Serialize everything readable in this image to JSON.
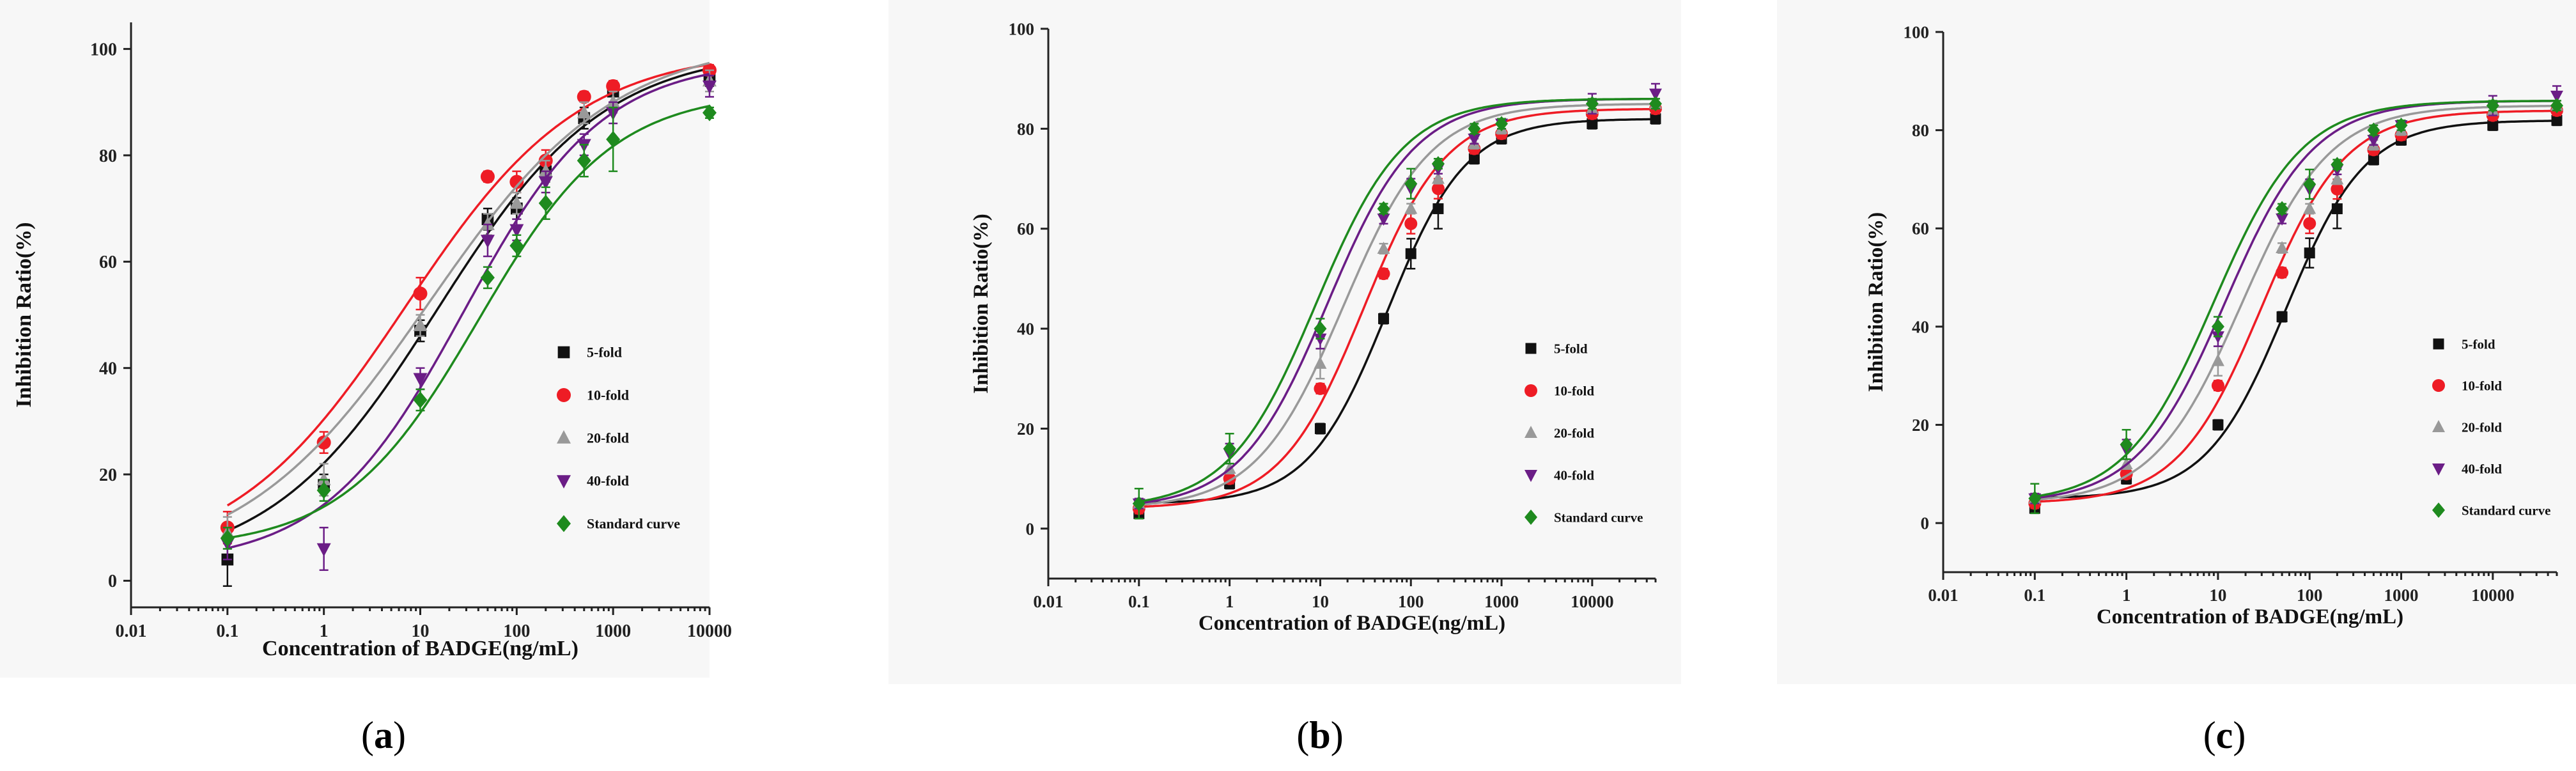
{
  "colors": {
    "5-fold": "#111111",
    "10-fold": "#ee1c25",
    "20-fold": "#999999",
    "40-fold": "#6b1d86",
    "Standard curve": "#1e8a1e"
  },
  "marker_shapes": {
    "5-fold": "square",
    "10-fold": "circle",
    "20-fold": "triangle-up",
    "40-fold": "triangle-down",
    "Standard curve": "diamond"
  },
  "chart_data": [
    {
      "id": "a",
      "caption_letter": "a",
      "type": "scatter",
      "xscale": "log",
      "xlabel": "Concentration of BADGE(ng/mL)",
      "ylabel": "Inhibition Ratio(%)",
      "xlim": [
        0.01,
        10000
      ],
      "ylim": [
        -5,
        105
      ],
      "xticks": [
        0.01,
        0.1,
        1,
        10,
        100,
        1000,
        10000
      ],
      "xtick_labels": [
        "0.01",
        "0.1",
        "1",
        "10",
        "100",
        "1000",
        "10000"
      ],
      "yticks": [
        0,
        20,
        40,
        60,
        80,
        100
      ],
      "ytick_labels": [
        "0",
        "20",
        "40",
        "60",
        "80",
        "100"
      ],
      "legend_position": "center-right",
      "series": [
        {
          "name": "5-fold",
          "x": [
            0.1,
            1,
            10,
            50,
            100,
            200,
            500,
            1000,
            10000
          ],
          "y": [
            4,
            18,
            47,
            68,
            70,
            77,
            87,
            92,
            95
          ],
          "err": [
            5,
            2,
            2,
            2,
            2,
            2,
            2,
            2,
            2
          ],
          "fit": {
            "bottom": 2,
            "top": 100,
            "ic50": 15,
            "hill": 0.5
          }
        },
        {
          "name": "10-fold",
          "x": [
            0.1,
            1,
            10,
            50,
            100,
            200,
            500,
            1000,
            10000
          ],
          "y": [
            10,
            26,
            54,
            76,
            75,
            79,
            91,
            93,
            96
          ],
          "err": [
            3,
            2,
            3,
            1,
            2,
            2,
            1,
            1,
            1
          ],
          "fit": {
            "bottom": 3,
            "top": 100,
            "ic50": 7,
            "hill": 0.48
          }
        },
        {
          "name": "20-fold",
          "x": [
            0.1,
            1,
            10,
            50,
            100,
            200,
            500,
            1000,
            10000
          ],
          "y": [
            9,
            19,
            48,
            67,
            71,
            77,
            88,
            90,
            94
          ],
          "err": [
            3,
            3,
            2,
            2,
            2,
            2,
            2,
            2,
            2
          ],
          "fit": {
            "bottom": 2,
            "top": 102,
            "ic50": 12,
            "hill": 0.45
          }
        },
        {
          "name": "40-fold",
          "x": [
            0.1,
            1,
            10,
            50,
            100,
            200,
            500,
            1000,
            10000
          ],
          "y": [
            7,
            6,
            38,
            64,
            66,
            75,
            82,
            88,
            93
          ],
          "err": [
            3,
            4,
            2,
            3,
            2,
            2,
            2,
            2,
            2
          ],
          "fit": {
            "bottom": 3,
            "top": 98,
            "ic50": 28,
            "hill": 0.6
          }
        },
        {
          "name": "Standard curve",
          "x": [
            0.1,
            1,
            10,
            50,
            100,
            200,
            500,
            1000,
            10000
          ],
          "y": [
            8,
            17,
            34,
            57,
            63,
            71,
            79,
            83,
            88
          ],
          "err": [
            2,
            2,
            2,
            2,
            2,
            3,
            3,
            6,
            1
          ],
          "fit": {
            "bottom": 6,
            "top": 92,
            "ic50": 40,
            "hill": 0.62
          }
        }
      ]
    },
    {
      "id": "b",
      "caption_letter": "b",
      "type": "scatter",
      "xscale": "log",
      "xlabel": "Concentration of BADGE(ng/mL)",
      "ylabel": "Inhibition Ratio(%)",
      "xlim": [
        0.01,
        50000
      ],
      "ylim": [
        -10,
        100
      ],
      "xticks": [
        0.01,
        0.1,
        1,
        10,
        100,
        1000,
        10000
      ],
      "xtick_labels": [
        "0.01",
        "0.1",
        "1",
        "10",
        "100",
        "1000",
        "10000"
      ],
      "yticks": [
        0,
        20,
        40,
        60,
        80,
        100
      ],
      "ytick_labels": [
        "0",
        "20",
        "40",
        "60",
        "80",
        "100"
      ],
      "legend_position": "center-right",
      "series": [
        {
          "name": "5-fold",
          "x": [
            0.1,
            1,
            10,
            50,
            100,
            200,
            500,
            1000,
            10000,
            50000
          ],
          "y": [
            3,
            9,
            20,
            42,
            55,
            64,
            74,
            78,
            81,
            82
          ],
          "err": [
            1,
            1,
            1,
            1,
            3,
            4,
            1,
            1,
            1,
            1
          ],
          "fit": {
            "bottom": 5,
            "top": 82,
            "ic50": 55,
            "hill": 1.0
          }
        },
        {
          "name": "10-fold",
          "x": [
            0.1,
            1,
            10,
            50,
            100,
            200,
            500,
            1000,
            10000,
            50000
          ],
          "y": [
            4,
            10,
            28,
            51,
            61,
            68,
            76,
            79,
            83,
            84
          ],
          "err": [
            1,
            1,
            1,
            1,
            2,
            2,
            1,
            1,
            1,
            1
          ],
          "fit": {
            "bottom": 4,
            "top": 84,
            "ic50": 30,
            "hill": 0.95
          }
        },
        {
          "name": "20-fold",
          "x": [
            0.1,
            1,
            10,
            50,
            100,
            200,
            500,
            1000,
            10000,
            50000
          ],
          "y": [
            5,
            12,
            33,
            56,
            64,
            70,
            77,
            80,
            84,
            85
          ],
          "err": [
            1,
            1,
            3,
            1,
            1,
            1,
            1,
            1,
            1,
            1
          ],
          "fit": {
            "bottom": 4,
            "top": 85,
            "ic50": 18,
            "hill": 0.9
          }
        },
        {
          "name": "40-fold",
          "x": [
            0.1,
            1,
            10,
            50,
            100,
            200,
            500,
            1000,
            10000,
            50000
          ],
          "y": [
            5,
            15,
            38,
            62,
            68,
            72,
            78,
            81,
            85,
            87
          ],
          "err": [
            1,
            2,
            2,
            1,
            2,
            1,
            1,
            1,
            2,
            2
          ],
          "fit": {
            "bottom": 4,
            "top": 86,
            "ic50": 12,
            "hill": 0.9
          }
        },
        {
          "name": "Standard curve",
          "x": [
            0.1,
            1,
            10,
            50,
            100,
            200,
            500,
            1000,
            10000,
            50000
          ],
          "y": [
            5,
            16,
            40,
            64,
            69,
            73,
            80,
            81,
            85,
            85
          ],
          "err": [
            3,
            3,
            2,
            1,
            3,
            1,
            1,
            1,
            1,
            1
          ],
          "fit": {
            "bottom": 4,
            "top": 86,
            "ic50": 9,
            "hill": 0.9
          }
        }
      ]
    },
    {
      "id": "c",
      "caption_letter": "c",
      "type": "scatter",
      "xscale": "log",
      "xlabel": "Concentration of BADGE(ng/mL)",
      "ylabel": "Inhibition Ratio(%)",
      "xlim": [
        0.01,
        50000
      ],
      "ylim": [
        -10,
        100
      ],
      "xticks": [
        0.01,
        0.1,
        1,
        10,
        100,
        1000,
        10000
      ],
      "xtick_labels": [
        "0.01",
        "0.1",
        "1",
        "10",
        "100",
        "1000",
        "10000"
      ],
      "yticks": [
        0,
        20,
        40,
        60,
        80,
        100
      ],
      "ytick_labels": [
        "0",
        "20",
        "40",
        "60",
        "80",
        "100"
      ],
      "legend_position": "center-right",
      "series": [
        {
          "name": "5-fold",
          "x": [
            0.1,
            1,
            10,
            50,
            100,
            200,
            500,
            1000,
            10000,
            50000
          ],
          "y": [
            3,
            9,
            20,
            42,
            55,
            64,
            74,
            78,
            81,
            82
          ],
          "err": [
            1,
            1,
            1,
            1,
            3,
            4,
            1,
            1,
            1,
            1
          ],
          "fit": {
            "bottom": 5,
            "top": 82,
            "ic50": 55,
            "hill": 1.0
          }
        },
        {
          "name": "10-fold",
          "x": [
            0.1,
            1,
            10,
            50,
            100,
            200,
            500,
            1000,
            10000,
            50000
          ],
          "y": [
            4,
            10,
            28,
            51,
            61,
            68,
            76,
            79,
            83,
            84
          ],
          "err": [
            1,
            1,
            1,
            1,
            2,
            2,
            1,
            1,
            1,
            1
          ],
          "fit": {
            "bottom": 4,
            "top": 84,
            "ic50": 30,
            "hill": 0.95
          }
        },
        {
          "name": "20-fold",
          "x": [
            0.1,
            1,
            10,
            50,
            100,
            200,
            500,
            1000,
            10000,
            50000
          ],
          "y": [
            5,
            12,
            33,
            56,
            64,
            70,
            77,
            80,
            84,
            85
          ],
          "err": [
            1,
            1,
            3,
            1,
            1,
            1,
            1,
            1,
            1,
            1
          ],
          "fit": {
            "bottom": 4,
            "top": 85,
            "ic50": 18,
            "hill": 0.9
          }
        },
        {
          "name": "40-fold",
          "x": [
            0.1,
            1,
            10,
            50,
            100,
            200,
            500,
            1000,
            10000,
            50000
          ],
          "y": [
            5,
            15,
            38,
            62,
            68,
            72,
            78,
            81,
            85,
            87
          ],
          "err": [
            1,
            2,
            2,
            1,
            2,
            1,
            1,
            1,
            2,
            2
          ],
          "fit": {
            "bottom": 4,
            "top": 86,
            "ic50": 12,
            "hill": 0.9
          }
        },
        {
          "name": "Standard curve",
          "x": [
            0.1,
            1,
            10,
            50,
            100,
            200,
            500,
            1000,
            10000,
            50000
          ],
          "y": [
            5,
            16,
            40,
            64,
            69,
            73,
            80,
            81,
            85,
            85
          ],
          "err": [
            3,
            3,
            2,
            1,
            3,
            1,
            1,
            1,
            1,
            1
          ],
          "fit": {
            "bottom": 4,
            "top": 86,
            "ic50": 9,
            "hill": 0.9
          }
        }
      ]
    }
  ]
}
